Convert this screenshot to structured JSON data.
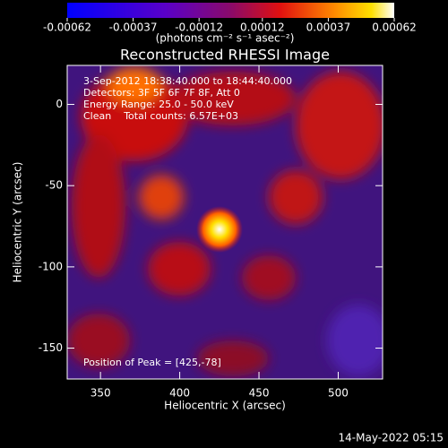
{
  "chart_data": {
    "type": "image",
    "title": "Reconstructed RHESSI Image",
    "colorbar": {
      "label": "(photons cm⁻² s⁻¹ asec⁻²)",
      "clim": [
        -0.00062,
        0.00062
      ],
      "ticks": [
        -0.00062,
        -0.00037,
        -0.00012,
        0.00012,
        0.00037,
        0.00062
      ]
    },
    "xlabel": "Heliocentric X (arcsec)",
    "ylabel": "Heliocentric Y (arcsec)",
    "xlim": [
      329,
      528
    ],
    "ylim": [
      -169,
      24
    ],
    "xticks": [
      350,
      400,
      450,
      500
    ],
    "yticks": [
      0,
      -50,
      -100,
      -150
    ],
    "annotations": [
      "3-Sep-2012 18:38:40.000 to 18:44:40.000",
      "Detectors: 3F 5F 6F 7F 8F, Att 0",
      "Energy Range: 25.0 - 50.0 keV",
      "Clean    Total counts: 6.57E+03"
    ],
    "peak_note": "Position of Peak = [425,-78]",
    "timestamp": "14-May-2022 05:15"
  }
}
